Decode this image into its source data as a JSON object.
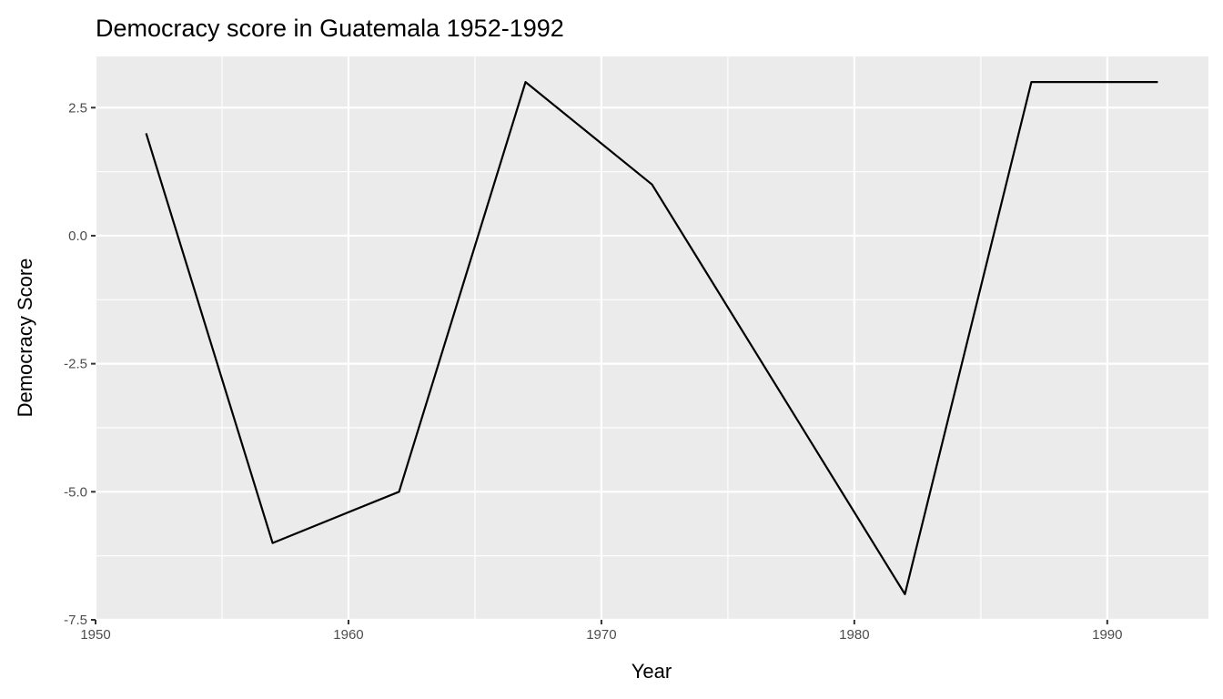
{
  "chart_data": {
    "type": "line",
    "title": "Democracy score in Guatemala 1952-1992",
    "xlabel": "Year",
    "ylabel": "Democracy Score",
    "x": [
      1952,
      1957,
      1962,
      1967,
      1972,
      1982,
      1987,
      1992
    ],
    "y": [
      2,
      -6,
      -5,
      3,
      1,
      -7,
      3,
      3
    ],
    "xlim": [
      1950,
      1994
    ],
    "ylim": [
      -7.5,
      3.5
    ],
    "xticks": [
      1950,
      1960,
      1970,
      1980,
      1990
    ],
    "xtick_labels": [
      "1950",
      "1960",
      "1970",
      "1980",
      "1990"
    ],
    "yticks": [
      2.5,
      0,
      -2.5,
      -5,
      -7.5
    ],
    "ytick_labels": [
      "2.5",
      "0.0",
      "-2.5",
      "-5.0",
      "-7.5"
    ],
    "grid": true,
    "colors": {
      "panel": "#EBEBEB",
      "grid": "#FFFFFF",
      "line": "#000000"
    }
  }
}
